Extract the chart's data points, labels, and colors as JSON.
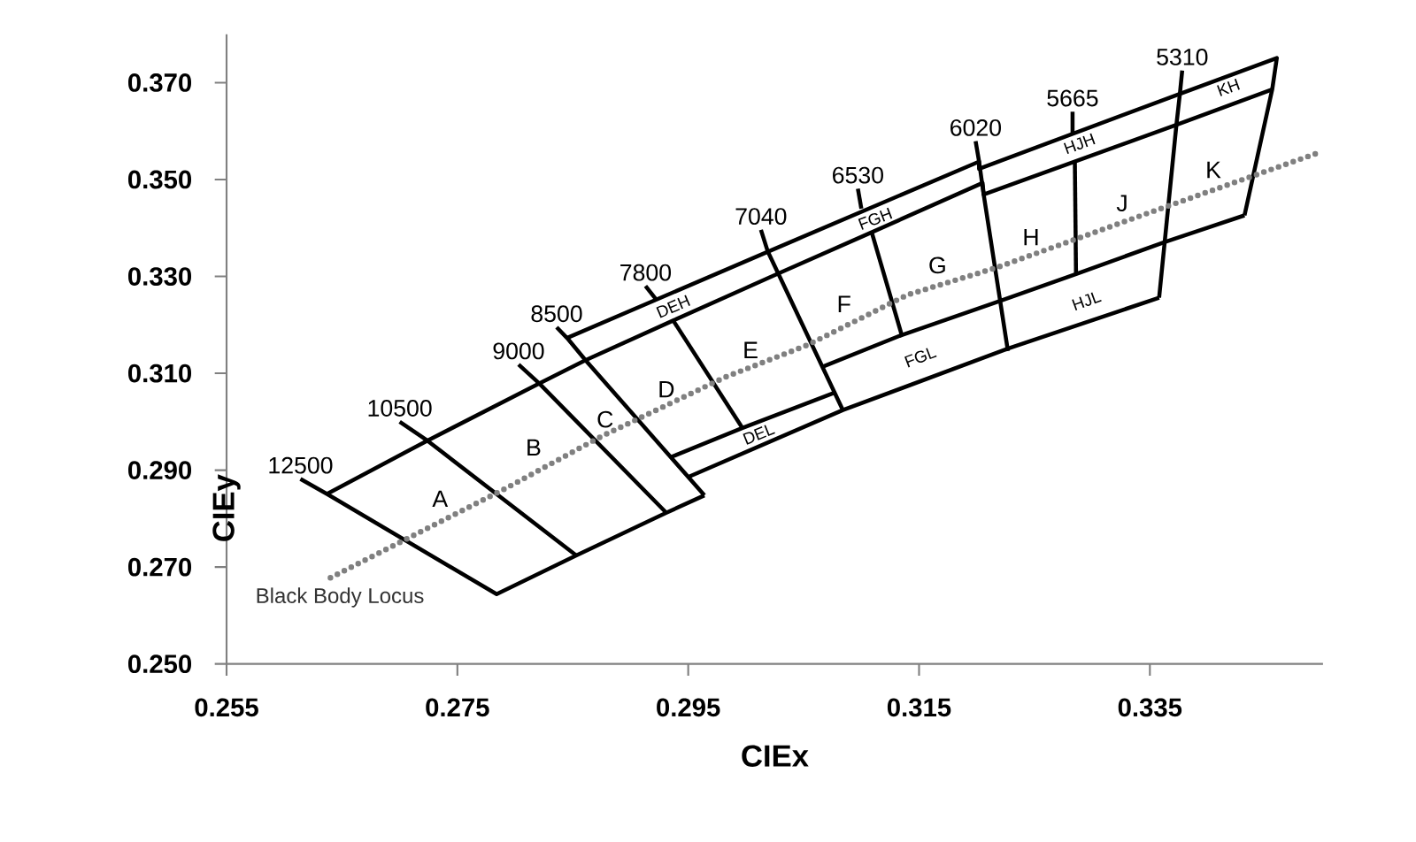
{
  "chart_data": {
    "type": "line",
    "xlabel": "CIEx",
    "ylabel": "CIEy",
    "xlim": [
      0.255,
      0.35
    ],
    "ylim": [
      0.25,
      0.38
    ],
    "xticks": [
      0.255,
      0.275,
      0.295,
      0.315,
      0.335
    ],
    "yticks": [
      {
        "value": 0.25,
        "label": "0.250"
      },
      {
        "value": 0.27,
        "label": "0.270"
      },
      {
        "value": 0.29,
        "label": "0.290"
      },
      {
        "value": 0.31,
        "label": "0.310"
      },
      {
        "value": 0.33,
        "label": "0.330"
      },
      {
        "value": 0.35,
        "label": "0.350"
      },
      {
        "value": 0.37,
        "label": "0.370"
      }
    ],
    "series": [
      {
        "color": "#000000",
        "x": [
          0.2845,
          0.3019,
          0.3202,
          0.3202,
          0.3376,
          0.346,
          0.3456,
          0.3432
        ],
        "values": [
          0.3173,
          0.3351,
          0.3537,
          0.3522,
          0.3677,
          0.3751,
          0.3686,
          0.3426
        ]
      },
      {
        "color": "#000000",
        "x": [
          0.2637,
          0.2724,
          0.2821,
          0.2861,
          0.2937,
          0.3028,
          0.3109,
          0.3205,
          0.3206,
          0.3285,
          0.3373,
          0.3456
        ],
        "values": [
          0.2851,
          0.2961,
          0.3079,
          0.3127,
          0.3209,
          0.3306,
          0.3391,
          0.3493,
          0.3469,
          0.3537,
          0.3613,
          0.3686
        ]
      },
      {
        "color": "#000000",
        "x": [
          0.2935,
          0.2997,
          0.3078
        ],
        "values": [
          0.2927,
          0.2987,
          0.3061
        ]
      },
      {
        "color": "#000000",
        "x": [
          0.2951,
          0.3084,
          0.3227,
          0.3358
        ],
        "values": [
          0.2887,
          0.3024,
          0.3151,
          0.3256
        ]
      },
      {
        "color": "#000000",
        "x": [
          0.3066,
          0.3135,
          0.3221,
          0.3286,
          0.3363,
          0.3432
        ],
        "values": [
          0.3113,
          0.3179,
          0.325,
          0.3305,
          0.3371,
          0.3426
        ]
      },
      {
        "color": "#000000",
        "x": [
          0.2937,
          0.2997
        ],
        "values": [
          0.3209,
          0.2987
        ]
      },
      {
        "color": "#000000",
        "x": [
          0.3109,
          0.3135
        ],
        "values": [
          0.3391,
          0.3179
        ]
      },
      {
        "color": "#000000",
        "x": [
          0.3285,
          0.3286
        ],
        "values": [
          0.3537,
          0.3305
        ]
      },
      {
        "name": "12500",
        "color": "#000000",
        "x": [
          0.2614,
          0.2637,
          0.2784,
          0.2853,
          0.2931,
          0.2964
        ],
        "values": [
          0.2882,
          0.2851,
          0.2644,
          0.2724,
          0.2812,
          0.2848
        ]
      },
      {
        "name": "10500",
        "color": "#000000",
        "x": [
          0.27,
          0.2724,
          0.2853
        ],
        "values": [
          0.3,
          0.2961,
          0.2724
        ]
      },
      {
        "name": "9000",
        "color": "#000000",
        "x": [
          0.2803,
          0.2821,
          0.2931
        ],
        "values": [
          0.3118,
          0.3079,
          0.2812
        ]
      },
      {
        "name": "8500",
        "color": "#000000",
        "x": [
          0.2836,
          0.2845,
          0.2861,
          0.2964
        ],
        "values": [
          0.3195,
          0.3173,
          0.3127,
          0.2848
        ]
      },
      {
        "name": "7800",
        "color": "#000000",
        "x": [
          0.2913,
          0.2923
        ],
        "values": [
          0.328,
          0.325
        ]
      },
      {
        "name": "7040",
        "color": "#000000",
        "x": [
          0.3013,
          0.3019,
          0.3028,
          0.3084
        ],
        "values": [
          0.3396,
          0.3351,
          0.3306,
          0.3024
        ]
      },
      {
        "name": "6530",
        "color": "#000000",
        "x": [
          0.3097,
          0.31
        ],
        "values": [
          0.3481,
          0.344
        ]
      },
      {
        "name": "6020",
        "color": "#000000",
        "x": [
          0.3199,
          0.3202,
          0.3206,
          0.3227
        ],
        "values": [
          0.3579,
          0.3537,
          0.3469,
          0.3146
        ]
      },
      {
        "name": "5665",
        "color": "#000000",
        "x": [
          0.3283,
          0.3283
        ],
        "values": [
          0.364,
          0.3593
        ]
      },
      {
        "name": "5310",
        "color": "#000000",
        "x": [
          0.3378,
          0.3376,
          0.3373,
          0.3358
        ],
        "values": [
          0.3725,
          0.3677,
          0.3613,
          0.3256
        ]
      },
      {
        "name": "Black Body Locus",
        "color": "#808080",
        "line_style": "dotted",
        "x": [
          0.264,
          0.279,
          0.2875,
          0.2982,
          0.3054,
          0.314,
          0.3217,
          0.335,
          0.3498
        ],
        "values": [
          0.2678,
          0.286,
          0.297,
          0.3092,
          0.3159,
          0.3262,
          0.3318,
          0.3432,
          0.3557
        ]
      }
    ],
    "annotations": [
      "A",
      "B",
      "C",
      "D",
      "E",
      "F",
      "G",
      "H",
      "J",
      "K",
      "DEH",
      "FGH",
      "HJH",
      "KH",
      "DEL",
      "FGL",
      "HJL"
    ]
  }
}
